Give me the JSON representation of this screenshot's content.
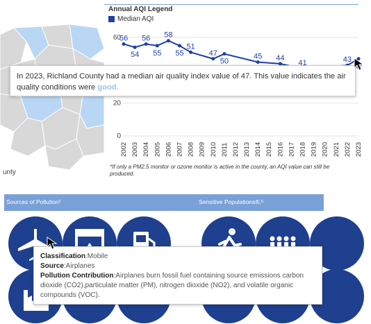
{
  "map": {
    "label": "unty"
  },
  "legend": {
    "title": "Annual AQI Legend",
    "item": "Median AQI",
    "color": "#1f3fa8"
  },
  "chart_data": {
    "type": "line",
    "series": [
      {
        "name": "Median AQI",
        "x": [
          2002,
          2003,
          2004,
          2005,
          2006,
          2007,
          2008,
          2009,
          2010,
          2011,
          2012,
          2013,
          2014,
          2015,
          2016,
          2017,
          2018,
          2019,
          2020,
          2021,
          2022,
          2023
        ],
        "values": [
          56,
          54,
          56,
          55,
          58,
          55,
          51,
          null,
          47,
          50,
          null,
          null,
          45,
          null,
          44,
          null,
          41,
          null,
          null,
          null,
          43,
          47
        ],
        "labels": [
          "56",
          "54",
          "56",
          "55",
          "58",
          "55",
          "51",
          "",
          "47",
          "50",
          "",
          "",
          "45",
          "",
          "44",
          "",
          "41",
          "",
          "",
          "",
          "43",
          "47"
        ]
      }
    ],
    "x_ticks": [
      "2002",
      "2003",
      "2004",
      "2005",
      "2006",
      "2007",
      "2008",
      "2009",
      "2010",
      "2011",
      "2012",
      "2013",
      "2014",
      "2015",
      "2016",
      "2017",
      "2018",
      "2019",
      "2020",
      "2021",
      "2022",
      "2023"
    ],
    "y_ticks": [
      "0",
      "20",
      "60"
    ],
    "ylim": [
      0,
      60
    ],
    "color": "#1f3fa8"
  },
  "footnote": "*If only a PM2.5 monitor or ozone monitor is active in the county, an AQI value can still be produced.",
  "tooltip_aqi": {
    "text_before": "In 2023, Richland County had a median air quality index value of  47. This value indicates the air quality conditions were ",
    "condition": "good."
  },
  "sources_bar": {
    "sources_label": "Sources of Pollution¹",
    "populations_label": "Sensitive Populations®,ʰ"
  },
  "tooltip_source": {
    "classification_key": "Classification",
    "classification_value": ":Mobile",
    "source_key": "Source",
    "source_value": ":Airplanes",
    "contribution_key": "Pollution Contribution",
    "contribution_value": ":Airplanes burn fossil fuel containing source emissions carbon dioxide (CO2),particulate matter (PM), nitrogen dioxide (NO2), and volatile organic compounds (VOC)."
  },
  "icons": {
    "airplane": "airplane-icon",
    "power_plant": "power-plant-icon",
    "gas_station": "gas-pump-icon",
    "runner": "runner-icon",
    "group": "people-group-icon",
    "factory": "factory-icon"
  }
}
